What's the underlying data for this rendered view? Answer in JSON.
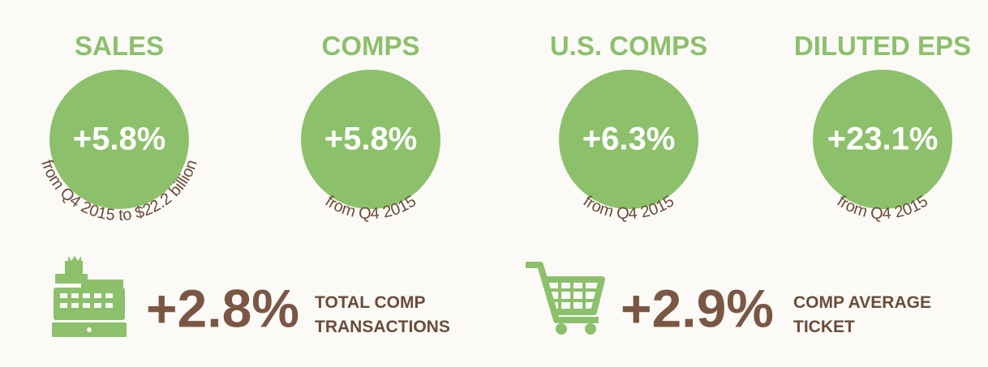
{
  "metrics": [
    {
      "title": "SALES",
      "value": "+5.8%",
      "caption": "from Q4 2015 to $22.2 billion"
    },
    {
      "title": "COMPS",
      "value": "+5.8%",
      "caption": "from Q4 2015"
    },
    {
      "title": "U.S. COMPS",
      "value": "+6.3%",
      "caption": "from Q4 2015"
    },
    {
      "title": "DILUTED EPS",
      "value": "+23.1%",
      "caption": "from Q4 2015"
    }
  ],
  "highlights": [
    {
      "value": "+2.8%",
      "label_lines": [
        "TOTAL COMP",
        "TRANSACTIONS"
      ]
    },
    {
      "value": "+2.9%",
      "label_lines": [
        "COMP AVERAGE",
        "TICKET"
      ]
    }
  ]
}
